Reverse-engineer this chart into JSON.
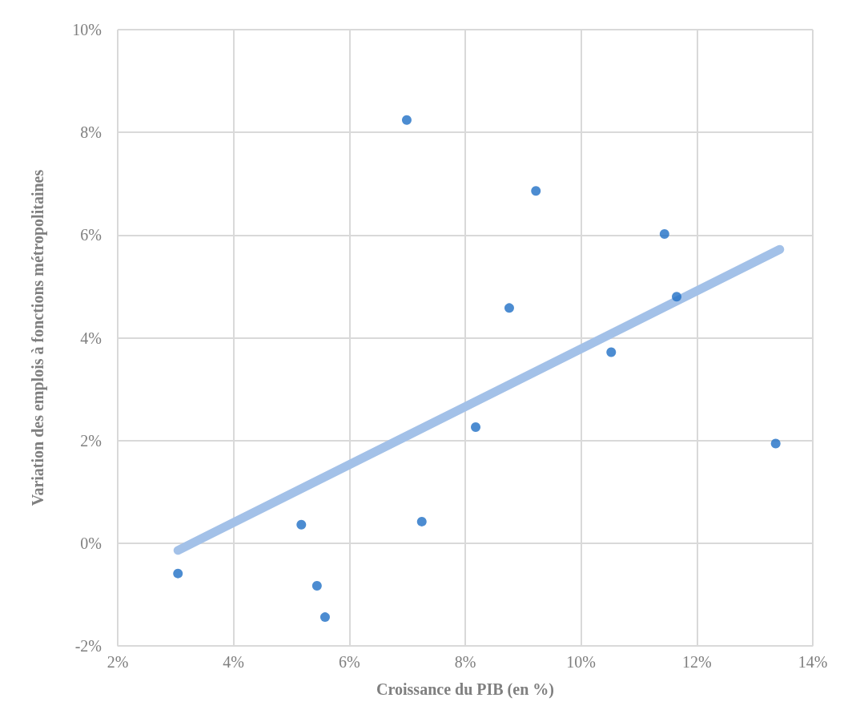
{
  "chart_data": {
    "type": "scatter",
    "xlabel": "Croissance du PIB (en %)",
    "ylabel": "Variation des emplois à fonctions métropolitaines",
    "xlim": [
      2,
      14
    ],
    "xticks": [
      {
        "value": 2,
        "label": "2%"
      },
      {
        "value": 4,
        "label": "4%"
      },
      {
        "value": 6,
        "label": "6%"
      },
      {
        "value": 8,
        "label": "8%"
      },
      {
        "value": 10,
        "label": "10%"
      },
      {
        "value": 12,
        "label": "12%"
      },
      {
        "value": 14,
        "label": "14%"
      }
    ],
    "ylim": [
      -2,
      10
    ],
    "yticks": [
      {
        "value": -2,
        "label": "-2%"
      },
      {
        "value": 0,
        "label": "0%"
      },
      {
        "value": 2,
        "label": "2%"
      },
      {
        "value": 4,
        "label": "4%"
      },
      {
        "value": 6,
        "label": "6%"
      },
      {
        "value": 8,
        "label": "8%"
      },
      {
        "value": 10,
        "label": "10%"
      }
    ],
    "grid": true,
    "series": [
      {
        "color": "#1f6fc6",
        "marker": "circle",
        "x": [
          3.04,
          5.17,
          5.44,
          5.58,
          6.99,
          7.25,
          8.18,
          8.76,
          9.22,
          10.52,
          11.44,
          11.65,
          13.36
        ],
        "values": [
          -0.59,
          0.36,
          -0.83,
          -1.44,
          8.24,
          0.42,
          2.26,
          4.58,
          6.86,
          3.72,
          6.02,
          4.8,
          1.94
        ]
      },
      {
        "type": "line",
        "color": "#a3c1e8",
        "marker": "none",
        "x": [
          3.04,
          13.43
        ],
        "values": [
          -0.14,
          5.72
        ]
      }
    ]
  }
}
